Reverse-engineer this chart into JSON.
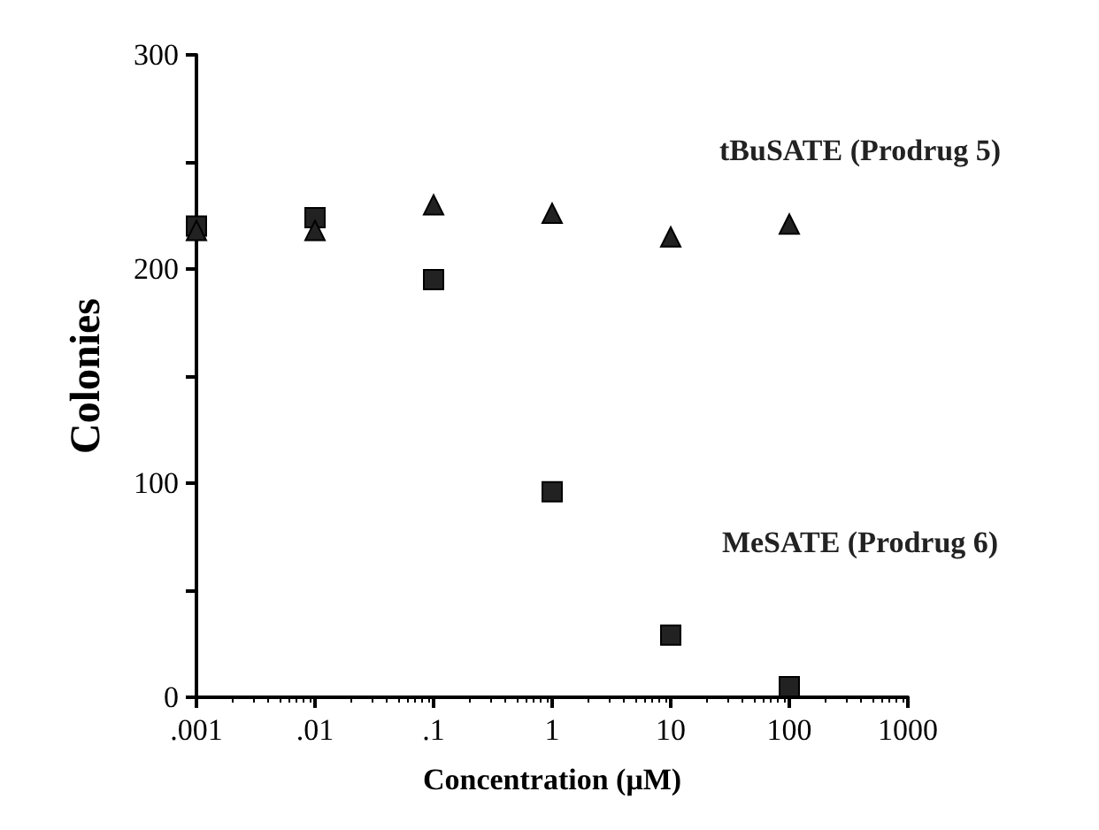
{
  "chart_data": {
    "type": "scatter",
    "xlabel": "Concentration (μM)",
    "ylabel": "Colonies",
    "log": "x",
    "xlim": [
      0.001,
      1000
    ],
    "xticks": [
      {
        "value": 0.001,
        "label": ".001"
      },
      {
        "value": 0.01,
        "label": ".01"
      },
      {
        "value": 0.1,
        "label": ".1"
      },
      1,
      10,
      100,
      1000
    ],
    "ylim": [
      0,
      300
    ],
    "yticks": [
      0,
      {
        "value": 50,
        "label": null
      },
      100,
      {
        "value": 150,
        "label": null
      },
      200,
      {
        "value": 250,
        "label": null
      },
      300
    ],
    "grid": false,
    "legend": false,
    "x": [
      0.001,
      0.01,
      0.1,
      1,
      10,
      100
    ],
    "series": [
      {
        "name": "tBuSATE (Prodrug 5)",
        "color": "#222222",
        "marker": "triangle",
        "values": [
          218,
          218,
          230,
          226,
          215,
          221
        ]
      },
      {
        "name": "MeSATE (Prodrug 6)",
        "color": "#222222",
        "marker": "square",
        "values": [
          220,
          224,
          195,
          96,
          29,
          5
        ]
      }
    ]
  }
}
